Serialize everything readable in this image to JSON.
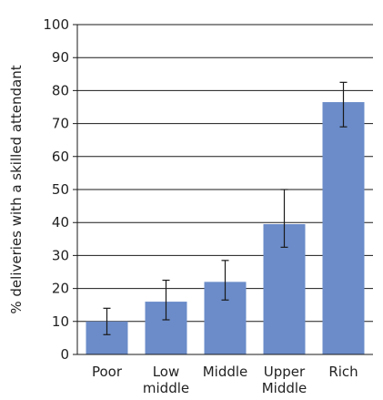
{
  "chart_data": {
    "type": "bar",
    "title": "",
    "xlabel": "",
    "ylabel": "% deliveries with a skilled attendant",
    "ylim": [
      0,
      100
    ],
    "y_ticks": [
      0,
      10,
      20,
      30,
      40,
      50,
      60,
      70,
      80,
      90,
      100
    ],
    "grid": true,
    "categories": [
      "Poor",
      "Low\nmiddle",
      "Middle",
      "Upper\nMiddle",
      "Rich"
    ],
    "values": [
      10,
      16,
      22,
      39.5,
      76.5
    ],
    "error_bars": [
      {
        "low": 6,
        "high": 14
      },
      {
        "low": 10.5,
        "high": 22.5
      },
      {
        "low": 16.5,
        "high": 28.5
      },
      {
        "low": 32.5,
        "high": 50
      },
      {
        "low": 69,
        "high": 82.5
      }
    ],
    "colors": {
      "bar": "#6b8cc9",
      "grid": "#1a1a1a",
      "axis": "#1a1a1a",
      "error": "#1a1a1a"
    }
  }
}
